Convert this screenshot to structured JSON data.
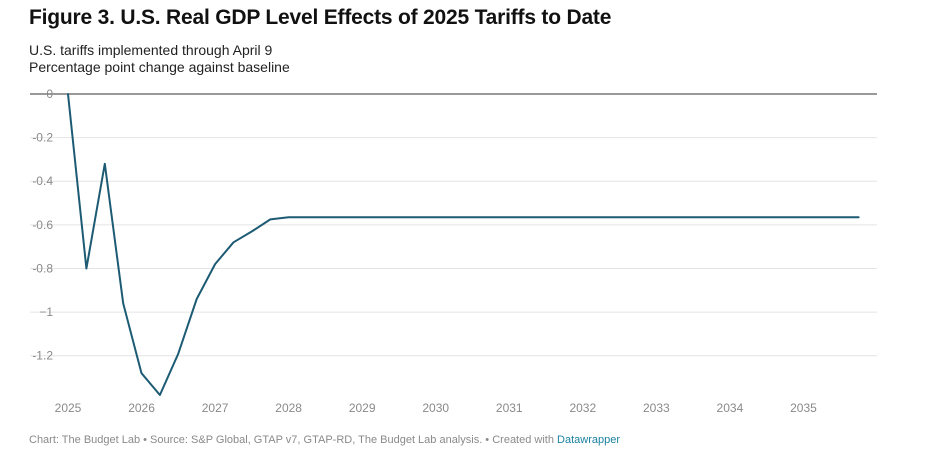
{
  "header": {
    "title": "Figure 3. U.S. Real GDP Level Effects of 2025 Tariffs to Date",
    "subtitle_line1": "U.S. tariffs implemented through April 9",
    "subtitle_line2": "Percentage point change against baseline"
  },
  "footer": {
    "credit": "Chart: The Budget Lab • Source: S&P Global, GTAP v7, GTAP-RD, The Budget Lab analysis. • Created with ",
    "link_text": "Datawrapper"
  },
  "chart_data": {
    "type": "line",
    "title": "Figure 3. U.S. Real GDP Level Effects of 2025 Tariffs to Date",
    "subtitle": "U.S. tariffs implemented through April 9",
    "ylabel": "Percentage point change against baseline",
    "xlabel": "",
    "xlim": [
      2025,
      2036
    ],
    "ylim": [
      -1.38,
      0
    ],
    "x_ticks": [
      "2025",
      "2026",
      "2027",
      "2028",
      "2029",
      "2030",
      "2031",
      "2032",
      "2033",
      "2034",
      "2035"
    ],
    "y_ticks": [
      "0",
      "-0.2",
      "-0.4",
      "-0.6",
      "-0.8",
      "−1",
      "-1.2"
    ],
    "y_tick_values": [
      0,
      -0.2,
      -0.4,
      -0.6,
      -0.8,
      -1,
      -1.2
    ],
    "grid": true,
    "line_color": "#1d5b74",
    "series": [
      {
        "x": [
          2025.0,
          2025.25,
          2025.5,
          2025.75,
          2026.0,
          2026.25,
          2026.5,
          2026.75,
          2027.0,
          2027.25,
          2027.5,
          2027.75,
          2028.0,
          2028.25,
          2029,
          2030,
          2031,
          2032,
          2033,
          2034,
          2035,
          2035.75
        ],
        "values": [
          0.0,
          -0.8,
          -0.32,
          -0.96,
          -1.28,
          -1.38,
          -1.19,
          -0.94,
          -0.78,
          -0.68,
          -0.63,
          -0.575,
          -0.565,
          -0.565,
          -0.565,
          -0.565,
          -0.565,
          -0.565,
          -0.565,
          -0.565,
          -0.565,
          -0.565
        ]
      }
    ]
  }
}
